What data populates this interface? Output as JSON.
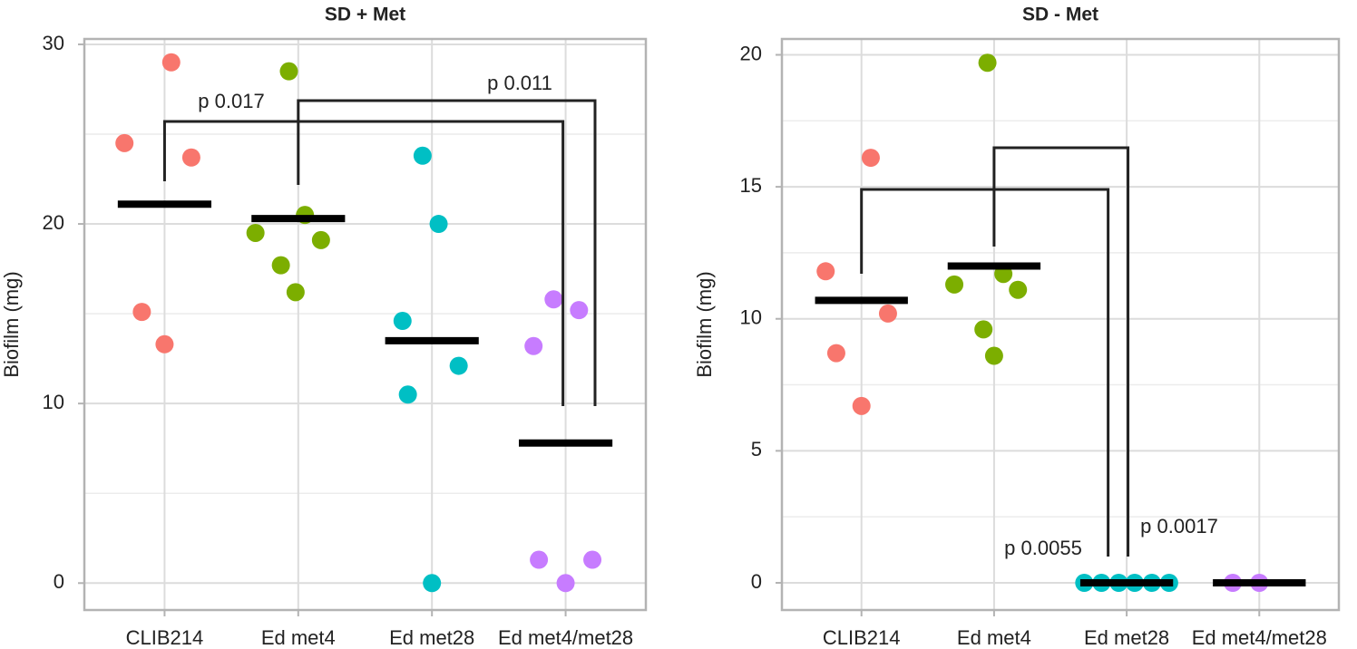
{
  "chart_data": [
    {
      "type": "strip",
      "title": "SD + Met",
      "ylabel": "Biofilm (mg)",
      "categories": [
        "CLIB214",
        "Ed met4",
        "Ed met28",
        "Ed met4/met28"
      ],
      "colors": [
        "#F8766D",
        "#7CAE00",
        "#00BFC4",
        "#C77CFF"
      ],
      "values": [
        [
          29.0,
          24.5,
          23.7,
          15.1,
          13.3
        ],
        [
          28.5,
          20.5,
          19.5,
          19.1,
          17.7,
          16.2
        ],
        [
          23.8,
          20.0,
          14.6,
          12.1,
          10.5,
          0
        ],
        [
          15.8,
          15.2,
          13.2,
          1.3,
          1.3,
          0
        ]
      ],
      "means": [
        21.1,
        20.3,
        13.5,
        7.8
      ],
      "ylim": [
        -1.5,
        30.3
      ],
      "yticks": [
        0,
        10,
        20,
        30
      ],
      "minor_yticks": [
        5,
        15,
        25
      ],
      "grid": true,
      "annotations": [
        {
          "label": "p 0.017",
          "from": "CLIB214",
          "to": "Ed met4/met28"
        },
        {
          "label": "p 0.011",
          "from": "Ed met4",
          "to": "Ed met4/met28"
        }
      ]
    },
    {
      "type": "strip",
      "title": "SD - Met",
      "ylabel": "Biofilm (mg)",
      "categories": [
        "CLIB214",
        "Ed met4",
        "Ed met28",
        "Ed met4/met28"
      ],
      "colors": [
        "#F8766D",
        "#7CAE00",
        "#00BFC4",
        "#C77CFF"
      ],
      "values": [
        [
          16.1,
          11.8,
          10.2,
          8.7,
          6.7
        ],
        [
          19.7,
          11.3,
          11.7,
          11.1,
          9.6,
          8.6
        ],
        [
          0,
          0,
          0,
          0,
          0,
          0
        ],
        [
          0,
          0
        ]
      ],
      "means": [
        10.7,
        12.0,
        0,
        0
      ],
      "ylim": [
        -1.03,
        20.6
      ],
      "yticks": [
        0,
        5,
        10,
        15,
        20
      ],
      "minor_yticks": [
        2.5,
        7.5,
        12.5,
        17.5
      ],
      "grid": true,
      "annotations": [
        {
          "label": "p 0.0055",
          "from": "CLIB214",
          "to": "Ed met28"
        },
        {
          "label": "p 0.0017",
          "from": "Ed met4",
          "to": "Ed met28"
        }
      ]
    }
  ]
}
